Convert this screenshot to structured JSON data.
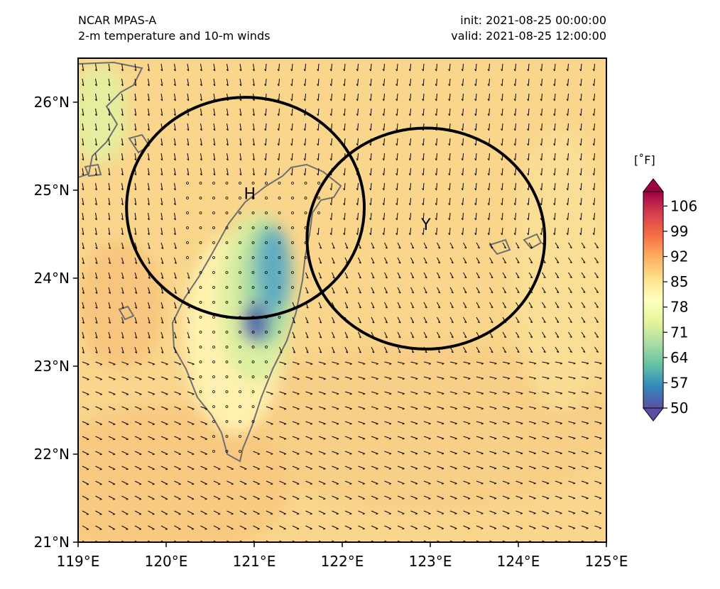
{
  "header": {
    "model": "NCAR MPAS-A",
    "field": "2-m temperature and 10-m winds",
    "init": "init: 2021-08-25 00:00:00",
    "valid": "valid: 2021-08-25 12:00:00"
  },
  "map": {
    "extent": {
      "lon_min": 119,
      "lon_max": 125,
      "lat_min": 21,
      "lat_max": 26.5
    },
    "x_ticks": [
      "119°E",
      "120°E",
      "121°E",
      "122°E",
      "123°E",
      "124°E",
      "125°E"
    ],
    "y_ticks": [
      "21°N",
      "22°N",
      "23°N",
      "24°N",
      "25°N",
      "26°N"
    ],
    "markers": [
      {
        "label": "H",
        "lon": 120.95,
        "lat": 24.9
      },
      {
        "label": "Y",
        "lon": 122.95,
        "lat": 24.55
      }
    ],
    "circles": [
      {
        "center_lon": 120.9,
        "center_lat": 24.8,
        "radius_deg": 1.35
      },
      {
        "center_lon": 122.95,
        "center_lat": 24.45,
        "radius_deg": 1.35
      }
    ],
    "colors": {
      "ocean_warm": "#f9d68c",
      "coast": "#6e6e6e",
      "circle": "#000000"
    }
  },
  "colorbar": {
    "units": "[˚F]",
    "min": 50,
    "max": 110,
    "ticks": [
      "106",
      "99",
      "92",
      "85",
      "78",
      "71",
      "64",
      "57",
      "50"
    ],
    "tick_values": [
      106,
      99,
      92,
      85,
      78,
      71,
      64,
      57,
      50
    ],
    "colors": [
      "#5e4fa2",
      "#3288bd",
      "#66c2a5",
      "#abdda4",
      "#e6f598",
      "#ffffbf",
      "#fee08b",
      "#fdae61",
      "#f46d43",
      "#d53e4f",
      "#9e0142"
    ]
  }
}
